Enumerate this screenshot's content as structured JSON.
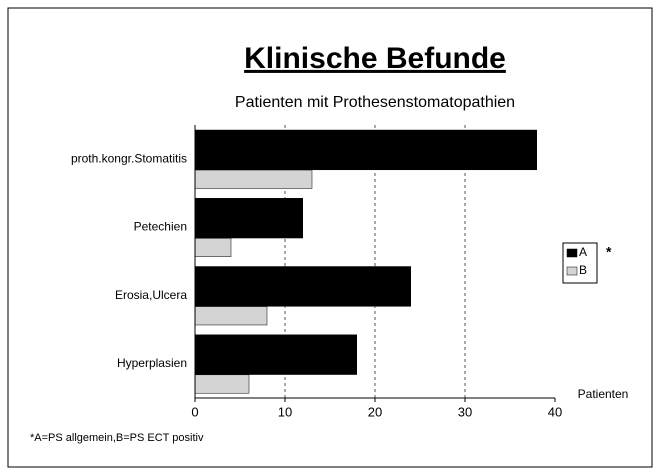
{
  "chart_data": {
    "type": "barh",
    "title": "Klinische Befunde",
    "subtitle": "Patienten mit Prothesenstomatopathien",
    "x_label": "Patienten",
    "categories": [
      "proth.kongr.Stomatitis",
      "Petechien",
      "Erosia,Ulcera",
      "Hyperplasien"
    ],
    "series": [
      {
        "name": "A",
        "color": "#000000",
        "values": [
          38,
          12,
          24,
          18
        ]
      },
      {
        "name": "B",
        "color": "#d4d4d4",
        "values": [
          13,
          4,
          8,
          6
        ]
      }
    ],
    "xlim": [
      0,
      40
    ],
    "xticks": [
      0,
      10,
      20,
      30,
      40
    ],
    "grid": true,
    "legend": "right",
    "legend_note": "*",
    "footnote": "*A=PS allgemein,B=PS ECT positiv"
  }
}
